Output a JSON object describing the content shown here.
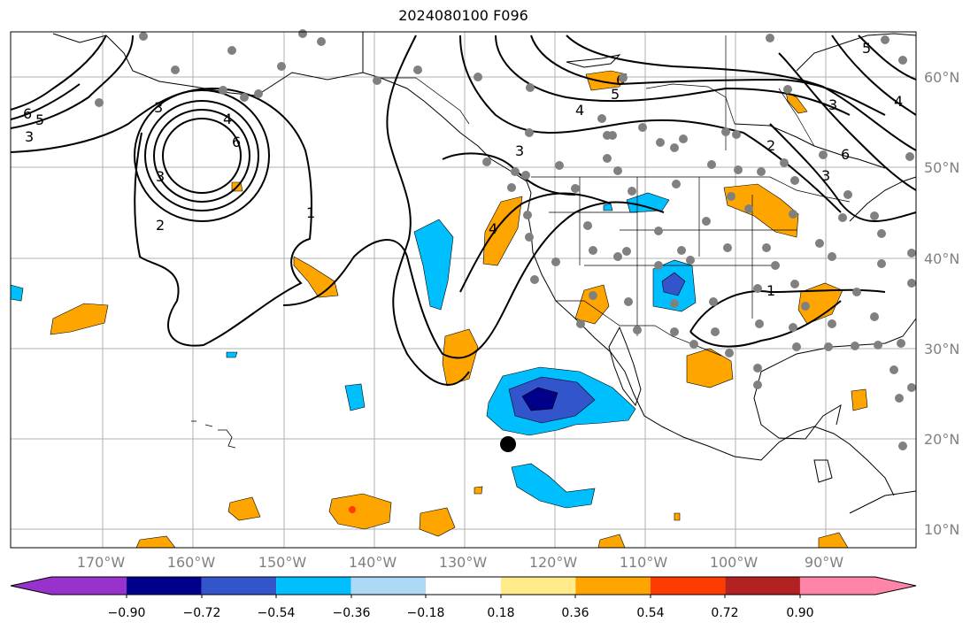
{
  "title": "2024080100 F096",
  "map": {
    "lat_labels": [
      "60°N",
      "50°N",
      "40°N",
      "30°N",
      "20°N",
      "10°N"
    ],
    "lon_labels": [
      "170°W",
      "160°W",
      "150°W",
      "140°W",
      "130°W",
      "120°W",
      "110°W",
      "100°W",
      "90°W"
    ],
    "contour_labels": [
      "6",
      "5",
      "3",
      "3",
      "3",
      "4",
      "6",
      "2",
      "1",
      "6",
      "5",
      "4",
      "3",
      "4",
      "1",
      "2",
      "3",
      "6",
      "3",
      "5",
      "4"
    ]
  },
  "colorbar": {
    "tick_labels": [
      "−0.90",
      "−0.72",
      "−0.54",
      "−0.36",
      "−0.18",
      "0.18",
      "0.36",
      "0.54",
      "0.72",
      "0.90"
    ],
    "colors": [
      "#9932cc",
      "#00008b",
      "#3355cc",
      "#00bfff",
      "#add8f6",
      "#ffffff",
      "#ffeb8a",
      "#ffa500",
      "#ff3c00",
      "#b22222",
      "#ff85a8"
    ]
  }
}
